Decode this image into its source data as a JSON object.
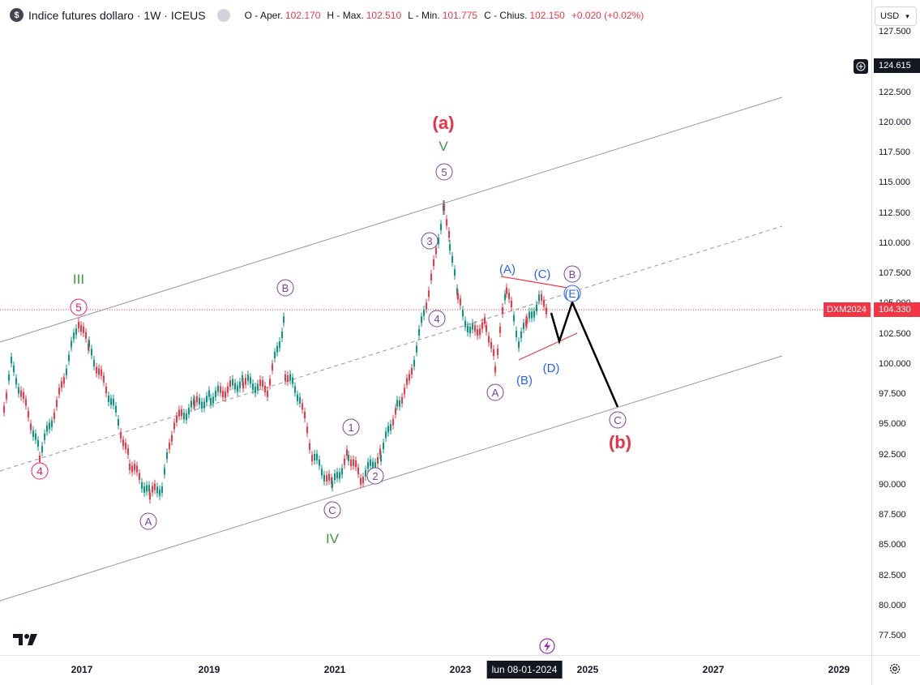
{
  "legend": {
    "symbol_icon": "$",
    "title": "Indice futures dollaro · 1W · ICEUS",
    "open_label": "O - Aper.",
    "open": "102.170",
    "high_label": "H - Max.",
    "high": "102.510",
    "low_label": "L - Min.",
    "low": "101.775",
    "close_label": "C - Chius.",
    "close": "102.150",
    "change": "+0.020 (+0.02%)"
  },
  "currency": "USD",
  "price_axis": {
    "ticks": [
      "127.500",
      "122.500",
      "120.000",
      "117.500",
      "115.000",
      "112.500",
      "110.000",
      "107.500",
      "105.000",
      "102.500",
      "100.000",
      "97.500",
      "95.000",
      "92.500",
      "90.000",
      "87.500",
      "85.000",
      "82.500",
      "80.000",
      "77.500"
    ],
    "crosshair_price": "124.615",
    "symbol_tag": "DXM2024",
    "last_price": "104.330"
  },
  "time_axis": {
    "ticks": [
      "2017",
      "2019",
      "2021",
      "2023",
      "2025",
      "2027",
      "2029"
    ],
    "crosshair_date": "lun 08-01-2024"
  },
  "wave_labels": {
    "a_big": "(a)",
    "b_big": "(b)",
    "roman": [
      "III",
      "V",
      "IV"
    ],
    "circled_pink": [
      "5",
      "4"
    ],
    "circled_purple": [
      "A",
      "B",
      "1",
      "C",
      "2",
      "3",
      "4",
      "5",
      "A",
      "B",
      "C"
    ],
    "blue": [
      "(A)",
      "(B)",
      "(C)",
      "(D)",
      "(E)"
    ]
  },
  "colors": {
    "up": "#089981",
    "down": "#f23645",
    "channel": "#9598a1",
    "red_label": "#e83344",
    "green_label": "#3a9a3a",
    "purple": "#7a3fa0",
    "blue": "#2962ff",
    "pink": "#e91e63"
  },
  "icons": [
    "dollar-symbol-icon",
    "eye-icon",
    "plus-circle-icon",
    "tradingview-logo-icon",
    "settings-gear-icon",
    "lightning-icon"
  ]
}
